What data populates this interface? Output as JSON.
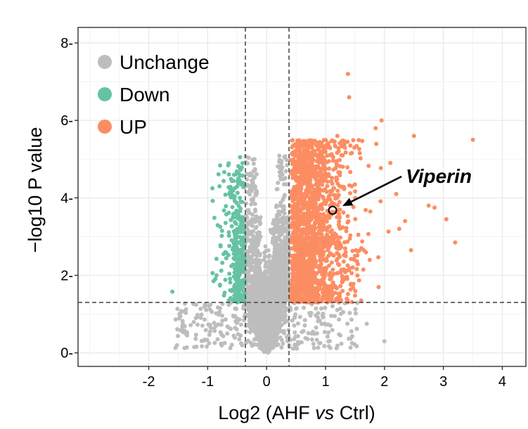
{
  "chart_data": {
    "type": "scatter",
    "title": "",
    "xlabel_pre": "Log2 (AHF ",
    "xlabel_em": "vs",
    "xlabel_post": " Ctrl)",
    "ylabel": "−log10 P value",
    "xlim": [
      -3.2,
      4.4
    ],
    "ylim": [
      -0.35,
      8.4
    ],
    "xticks": [
      -2,
      -1,
      0,
      1,
      2,
      3,
      4
    ],
    "yticks": [
      0,
      2,
      4,
      6,
      8
    ],
    "grid": true,
    "thresholds": {
      "x": [
        -0.36,
        0.38
      ],
      "y": 1.3
    },
    "legend_position": "top-left",
    "series": [
      {
        "name": "Unchange",
        "color": "#bdbdbd"
      },
      {
        "name": "Down",
        "color": "#66c2a5"
      },
      {
        "name": "UP",
        "color": "#fc8d62"
      }
    ],
    "highlight": {
      "label": "Viperin",
      "x": 1.12,
      "y": 3.68
    }
  }
}
